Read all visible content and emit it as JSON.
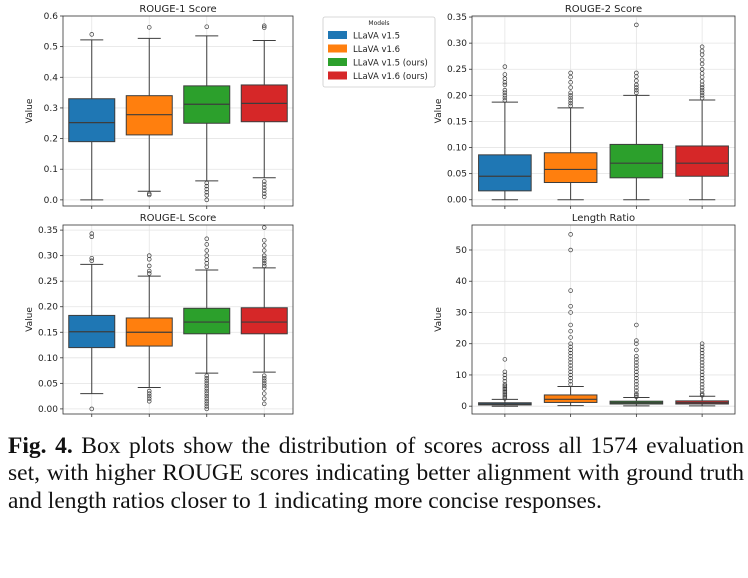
{
  "chart_data": [
    {
      "type": "box",
      "title": "ROUGE-1 Score",
      "ylabel": "Value",
      "ylim": [
        -0.02,
        0.6
      ],
      "yticks": [
        0.0,
        0.1,
        0.2,
        0.3,
        0.4,
        0.5,
        0.6
      ],
      "tick_labels": [
        "0.0",
        "0.1",
        "0.2",
        "0.3",
        "0.4",
        "0.5",
        "0.6"
      ],
      "boxes": [
        {
          "model": "LLaVA v1.5",
          "q1": 0.19,
          "median": 0.252,
          "q3": 0.33,
          "whisker_low": 0.0,
          "whisker_high": 0.522,
          "outliers": [
            0.54
          ]
        },
        {
          "model": "LLaVA v1.6",
          "q1": 0.212,
          "median": 0.278,
          "q3": 0.34,
          "whisker_low": 0.028,
          "whisker_high": 0.527,
          "outliers": [
            0.016,
            0.02,
            0.563
          ]
        },
        {
          "model": "LLaVA v1.5 (ours)",
          "q1": 0.25,
          "median": 0.312,
          "q3": 0.372,
          "whisker_low": 0.062,
          "whisker_high": 0.535,
          "outliers": [
            0.0,
            0.015,
            0.025,
            0.035,
            0.045,
            0.055,
            0.565
          ]
        },
        {
          "model": "LLaVA v1.6 (ours)",
          "q1": 0.255,
          "median": 0.315,
          "q3": 0.375,
          "whisker_low": 0.072,
          "whisker_high": 0.52,
          "outliers": [
            0.01,
            0.02,
            0.03,
            0.04,
            0.05,
            0.06,
            0.562,
            0.568
          ]
        }
      ]
    },
    {
      "type": "box",
      "title": "ROUGE-2 Score",
      "ylabel": "Value",
      "ylim": [
        -0.012,
        0.352
      ],
      "yticks": [
        0.0,
        0.05,
        0.1,
        0.15,
        0.2,
        0.25,
        0.3,
        0.35
      ],
      "tick_labels": [
        "0.00",
        "0.05",
        "0.10",
        "0.15",
        "0.20",
        "0.25",
        "0.30",
        "0.35"
      ],
      "boxes": [
        {
          "model": "LLaVA v1.5",
          "q1": 0.017,
          "median": 0.045,
          "q3": 0.086,
          "whisker_low": 0.0,
          "whisker_high": 0.187,
          "outliers": [
            0.19,
            0.195,
            0.2,
            0.205,
            0.21,
            0.22,
            0.225,
            0.232,
            0.24,
            0.255
          ]
        },
        {
          "model": "LLaVA v1.6",
          "q1": 0.033,
          "median": 0.058,
          "q3": 0.09,
          "whisker_low": 0.0,
          "whisker_high": 0.176,
          "outliers": [
            0.18,
            0.185,
            0.19,
            0.195,
            0.2,
            0.205,
            0.215,
            0.225,
            0.235,
            0.243
          ]
        },
        {
          "model": "LLaVA v1.5 (ours)",
          "q1": 0.042,
          "median": 0.07,
          "q3": 0.106,
          "whisker_low": 0.0,
          "whisker_high": 0.2,
          "outliers": [
            0.205,
            0.21,
            0.215,
            0.22,
            0.228,
            0.236,
            0.243,
            0.335
          ]
        },
        {
          "model": "LLaVA v1.6 (ours)",
          "q1": 0.045,
          "median": 0.07,
          "q3": 0.103,
          "whisker_low": 0.0,
          "whisker_high": 0.191,
          "outliers": [
            0.195,
            0.2,
            0.205,
            0.21,
            0.215,
            0.22,
            0.227,
            0.235,
            0.242,
            0.25,
            0.26,
            0.268,
            0.278,
            0.285,
            0.293
          ]
        }
      ]
    },
    {
      "type": "box",
      "title": "ROUGE-L Score",
      "ylabel": "Value",
      "ylim": [
        -0.01,
        0.36
      ],
      "yticks": [
        0.0,
        0.05,
        0.1,
        0.15,
        0.2,
        0.25,
        0.3,
        0.35
      ],
      "tick_labels": [
        "0.00",
        "0.05",
        "0.10",
        "0.15",
        "0.20",
        "0.25",
        "0.30",
        "0.35"
      ],
      "boxes": [
        {
          "model": "LLaVA v1.5",
          "q1": 0.12,
          "median": 0.151,
          "q3": 0.183,
          "whisker_low": 0.03,
          "whisker_high": 0.283,
          "outliers": [
            0.0,
            0.29,
            0.295,
            0.337,
            0.343
          ]
        },
        {
          "model": "LLaVA v1.6",
          "q1": 0.123,
          "median": 0.15,
          "q3": 0.178,
          "whisker_low": 0.042,
          "whisker_high": 0.26,
          "outliers": [
            0.015,
            0.02,
            0.025,
            0.03,
            0.035,
            0.265,
            0.27,
            0.28,
            0.293,
            0.3
          ]
        },
        {
          "model": "LLaVA v1.5 (ours)",
          "q1": 0.147,
          "median": 0.17,
          "q3": 0.197,
          "whisker_low": 0.07,
          "whisker_high": 0.272,
          "outliers": [
            0.0,
            0.005,
            0.01,
            0.015,
            0.02,
            0.025,
            0.03,
            0.035,
            0.04,
            0.045,
            0.05,
            0.055,
            0.06,
            0.065,
            0.278,
            0.285,
            0.292,
            0.3,
            0.31,
            0.322,
            0.333
          ]
        },
        {
          "model": "LLaVA v1.6 (ours)",
          "q1": 0.147,
          "median": 0.17,
          "q3": 0.198,
          "whisker_low": 0.072,
          "whisker_high": 0.276,
          "outliers": [
            0.01,
            0.02,
            0.03,
            0.04,
            0.045,
            0.05,
            0.055,
            0.06,
            0.065,
            0.28,
            0.285,
            0.29,
            0.295,
            0.3,
            0.31,
            0.32,
            0.33,
            0.355
          ]
        }
      ]
    },
    {
      "type": "box",
      "title": "Length Ratio",
      "ylabel": "Value",
      "ylim": [
        -2.5,
        58
      ],
      "yticks": [
        0,
        10,
        20,
        30,
        40,
        50
      ],
      "tick_labels": [
        "0",
        "10",
        "20",
        "30",
        "40",
        "50"
      ],
      "boxes": [
        {
          "model": "LLaVA v1.5",
          "q1": 0.4,
          "median": 0.7,
          "q3": 1.1,
          "whisker_low": 0.0,
          "whisker_high": 2.2,
          "outliers": [
            2.5,
            3,
            3.5,
            4,
            4.5,
            5,
            5.5,
            6,
            6.5,
            7,
            8,
            9,
            10,
            11,
            15
          ]
        },
        {
          "model": "LLaVA v1.6",
          "q1": 1.2,
          "median": 2.2,
          "q3": 3.6,
          "whisker_low": 0.2,
          "whisker_high": 6.3,
          "outliers": [
            7,
            8,
            9,
            10,
            11,
            12,
            13,
            14,
            15,
            16,
            17,
            18,
            19,
            20,
            22,
            24,
            26,
            30,
            32,
            37,
            50,
            55
          ]
        },
        {
          "model": "LLaVA v1.5 (ours)",
          "q1": 0.7,
          "median": 1.1,
          "q3": 1.6,
          "whisker_low": 0.1,
          "whisker_high": 2.8,
          "outliers": [
            3,
            3.5,
            4,
            5,
            6,
            7,
            8,
            9,
            10,
            11,
            12,
            13,
            14,
            15,
            16,
            18,
            20,
            21,
            26
          ]
        },
        {
          "model": "LLaVA v1.6 (ours)",
          "q1": 0.7,
          "median": 1.1,
          "q3": 1.7,
          "whisker_low": 0.1,
          "whisker_high": 3.2,
          "outliers": [
            3.5,
            4,
            5,
            6,
            7,
            8,
            9,
            10,
            11,
            12,
            13,
            14,
            15,
            16,
            17,
            18,
            19,
            20
          ]
        }
      ]
    }
  ],
  "legend": {
    "title": "Models",
    "entries": [
      {
        "label": "LLaVA v1.5",
        "color": "#1f77b4"
      },
      {
        "label": "LLaVA v1.6",
        "color": "#ff7f0e"
      },
      {
        "label": "LLaVA v1.5 (ours)",
        "color": "#2ca02c"
      },
      {
        "label": "LLaVA v1.6 (ours)",
        "color": "#d62728"
      }
    ]
  },
  "caption": {
    "label": "Fig. 4.",
    "text": "Box plots show the distribution of scores across all 1574 evaluation set, with higher ROUGE scores indicating better alignment with ground truth and length ratios closer to 1 indicating more concise responses."
  }
}
